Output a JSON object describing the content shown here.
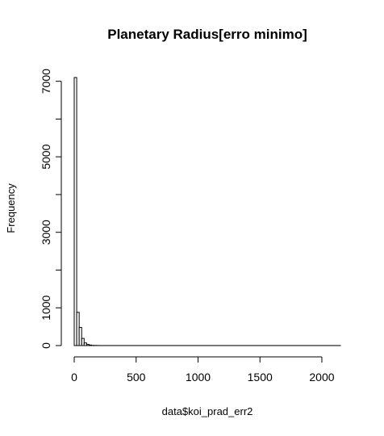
{
  "chart_data": {
    "type": "bar",
    "title": "Planetary Radius[erro minimo]",
    "xlabel": "data$koi_prad_err2",
    "ylabel": "Frequency",
    "xlim": [
      0,
      2150
    ],
    "ylim": [
      0,
      7100
    ],
    "x_ticks": [
      0,
      500,
      1000,
      1500,
      2000
    ],
    "x_tick_labels": [
      "0",
      "500",
      "1000",
      "1500",
      "2000"
    ],
    "y_ticks": [
      0,
      1000,
      2000,
      3000,
      4000,
      5000,
      6000,
      7000
    ],
    "y_tick_labels": [
      "0",
      "1000",
      "",
      "3000",
      "",
      "5000",
      "",
      "7000"
    ],
    "bin_width": 20,
    "bins": [
      {
        "x0": 0,
        "x1": 20,
        "count": 7100
      },
      {
        "x0": 20,
        "x1": 40,
        "count": 880
      },
      {
        "x0": 40,
        "x1": 60,
        "count": 480
      },
      {
        "x0": 60,
        "x1": 80,
        "count": 190
      },
      {
        "x0": 80,
        "x1": 100,
        "count": 70
      },
      {
        "x0": 100,
        "x1": 120,
        "count": 30
      },
      {
        "x0": 120,
        "x1": 140,
        "count": 15
      },
      {
        "x0": 140,
        "x1": 160,
        "count": 5
      },
      {
        "x0": 160,
        "x1": 180,
        "count": 3
      },
      {
        "x0": 180,
        "x1": 200,
        "count": 2
      },
      {
        "x0": 200,
        "x1": 2150,
        "count": 1
      }
    ],
    "grid": false,
    "legend": "none"
  }
}
